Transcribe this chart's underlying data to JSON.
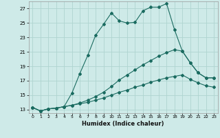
{
  "xlabel": "Humidex (Indice chaleur)",
  "background_color": "#ceeae8",
  "grid_color": "#aed4d0",
  "line_color": "#1a6b60",
  "xlim": [
    -0.5,
    23.5
  ],
  "ylim": [
    12.5,
    28.0
  ],
  "yticks": [
    13,
    15,
    17,
    19,
    21,
    23,
    25,
    27
  ],
  "xticks": [
    0,
    1,
    2,
    3,
    4,
    5,
    6,
    7,
    8,
    9,
    10,
    11,
    12,
    13,
    14,
    15,
    16,
    17,
    18,
    19,
    20,
    21,
    22,
    23
  ],
  "line1_x": [
    0,
    1,
    2,
    3,
    4,
    5,
    6,
    7,
    8,
    9,
    10,
    11,
    12,
    13,
    14,
    15,
    16,
    17,
    18,
    19,
    20,
    21,
    22,
    23
  ],
  "line1_y": [
    13.3,
    12.8,
    13.1,
    13.2,
    13.4,
    15.3,
    18.0,
    20.5,
    23.3,
    24.8,
    26.4,
    25.3,
    25.0,
    25.1,
    26.7,
    27.2,
    27.2,
    27.7,
    24.1,
    21.1,
    19.5,
    18.1,
    17.4,
    17.4
  ],
  "line2_x": [
    0,
    1,
    2,
    3,
    4,
    5,
    6,
    7,
    8,
    9,
    10,
    11,
    12,
    13,
    14,
    15,
    16,
    17,
    18,
    19,
    20,
    21,
    22,
    23
  ],
  "line2_y": [
    13.3,
    12.8,
    13.1,
    13.2,
    13.4,
    13.6,
    13.9,
    14.3,
    14.8,
    15.4,
    16.2,
    17.1,
    17.8,
    18.5,
    19.2,
    19.8,
    20.4,
    20.9,
    21.3,
    21.1,
    19.5,
    18.1,
    17.4,
    17.4
  ],
  "line3_x": [
    0,
    1,
    2,
    3,
    4,
    5,
    6,
    7,
    8,
    9,
    10,
    11,
    12,
    13,
    14,
    15,
    16,
    17,
    18,
    19,
    20,
    21,
    22,
    23
  ],
  "line3_y": [
    13.3,
    12.8,
    13.1,
    13.2,
    13.4,
    13.6,
    13.8,
    14.0,
    14.3,
    14.6,
    15.0,
    15.4,
    15.7,
    16.1,
    16.4,
    16.8,
    17.1,
    17.4,
    17.6,
    17.8,
    17.2,
    16.7,
    16.3,
    16.1
  ]
}
